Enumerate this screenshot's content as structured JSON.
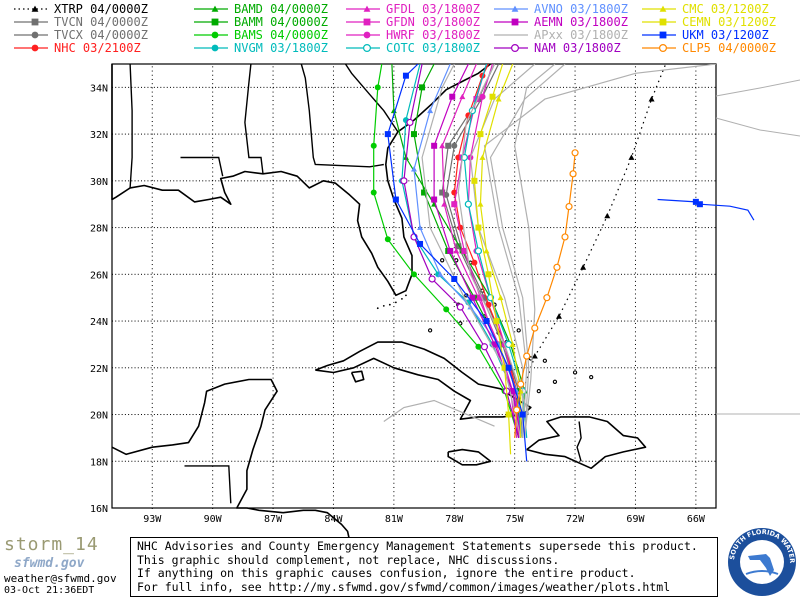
{
  "legend": [
    {
      "label": "XTRP 04/0000Z",
      "color": "#000000",
      "marker": "triangle",
      "dash": true
    },
    {
      "label": "TVCN 04/0000Z",
      "color": "#707070",
      "marker": "square"
    },
    {
      "label": "TVCX 04/0000Z",
      "color": "#707070",
      "marker": "circle"
    },
    {
      "label": "NHC  03/2100Z",
      "color": "#ff2020",
      "marker": "circle"
    },
    {
      "label": "BAMD 04/0000Z",
      "color": "#00aa00",
      "marker": "triangle"
    },
    {
      "label": "BAMM 04/0000Z",
      "color": "#00aa00",
      "marker": "square"
    },
    {
      "label": "BAMS 04/0000Z",
      "color": "#00cc00",
      "marker": "circle"
    },
    {
      "label": "NVGM 03/1800Z",
      "color": "#00bbbb",
      "marker": "circle"
    },
    {
      "label": "GFDL 03/1800Z",
      "color": "#e020c0",
      "marker": "triangle"
    },
    {
      "label": "GFDN 03/1800Z",
      "color": "#e020c0",
      "marker": "square"
    },
    {
      "label": "HWRF 03/1800Z",
      "color": "#e020c0",
      "marker": "circle"
    },
    {
      "label": "COTC 03/1800Z",
      "color": "#00bbbb",
      "marker": "hollow-circle"
    },
    {
      "label": "AVNO 03/1800Z",
      "color": "#6090ff",
      "marker": "triangle"
    },
    {
      "label": "AEMN 03/1800Z",
      "color": "#c000c0",
      "marker": "square"
    },
    {
      "label": "APxx 03/1800Z",
      "color": "#b0b0b0",
      "marker": "none"
    },
    {
      "label": "NAM  03/1800Z",
      "color": "#a000c0",
      "marker": "hollow-circle"
    },
    {
      "label": "CMC  03/1200Z",
      "color": "#e0e000",
      "marker": "triangle"
    },
    {
      "label": "CEMN 03/1200Z",
      "color": "#e0e000",
      "marker": "square"
    },
    {
      "label": "UKM  03/1200Z",
      "color": "#0030ff",
      "marker": "square"
    },
    {
      "label": "CLP5 04/0000Z",
      "color": "#ff8800",
      "marker": "hollow-circle"
    }
  ],
  "map": {
    "lon_labels": [
      "93W",
      "90W",
      "87W",
      "84W",
      "81W",
      "78W",
      "75W",
      "72W",
      "69W",
      "66W"
    ],
    "lat_labels": [
      "34N",
      "32N",
      "30N",
      "28N",
      "26N",
      "24N",
      "22N",
      "20N",
      "18N",
      "16N"
    ],
    "lon_range": [
      -95,
      -65
    ],
    "lat_range": [
      16,
      35
    ],
    "tracks": [
      {
        "name": "XTRP",
        "color": "#000000",
        "dash": true,
        "marker": "triangle",
        "points": [
          [
            -75,
            20
          ],
          [
            -74,
            22.5
          ],
          [
            -72.8,
            24.2
          ],
          [
            -71.6,
            26.3
          ],
          [
            -70.4,
            28.5
          ],
          [
            -69.2,
            31
          ],
          [
            -68.2,
            33.5
          ],
          [
            -67.5,
            35
          ]
        ]
      },
      {
        "name": "TVCN",
        "color": "#707070",
        "marker": "square",
        "points": [
          [
            -74.7,
            19
          ],
          [
            -74.9,
            21
          ],
          [
            -75.6,
            23
          ],
          [
            -76.6,
            25
          ],
          [
            -77.8,
            27.2
          ],
          [
            -78.6,
            29.5
          ],
          [
            -78.3,
            31.5
          ],
          [
            -76.8,
            33.5
          ],
          [
            -76,
            35
          ]
        ]
      },
      {
        "name": "TVCX",
        "color": "#707070",
        "marker": "circle",
        "points": [
          [
            -74.6,
            19
          ],
          [
            -74.8,
            21
          ],
          [
            -75.5,
            23
          ],
          [
            -76.5,
            25
          ],
          [
            -77.6,
            27
          ],
          [
            -78.4,
            29.4
          ],
          [
            -78,
            31.5
          ],
          [
            -76.6,
            33.6
          ],
          [
            -75.8,
            35
          ]
        ]
      },
      {
        "name": "NHC",
        "color": "#ff2020",
        "marker": "circle",
        "points": [
          [
            -74.8,
            19
          ],
          [
            -74.9,
            21
          ],
          [
            -75.5,
            23
          ],
          [
            -76.3,
            24.7
          ],
          [
            -77,
            26.5
          ],
          [
            -77.7,
            28
          ],
          [
            -78,
            29.5
          ],
          [
            -77.8,
            31
          ],
          [
            -77.3,
            32.8
          ],
          [
            -76.6,
            34.5
          ],
          [
            -76.3,
            35
          ]
        ]
      },
      {
        "name": "BAMD",
        "color": "#00aa00",
        "marker": "triangle",
        "points": [
          [
            -74.6,
            19
          ],
          [
            -74.5,
            21
          ],
          [
            -75.2,
            23
          ],
          [
            -76.2,
            25
          ],
          [
            -77.6,
            27
          ],
          [
            -79,
            29
          ],
          [
            -80.4,
            31
          ],
          [
            -81,
            33
          ],
          [
            -81.1,
            35
          ]
        ]
      },
      {
        "name": "BAMM",
        "color": "#00aa00",
        "marker": "square",
        "points": [
          [
            -74.7,
            19
          ],
          [
            -74.9,
            21
          ],
          [
            -75.8,
            23
          ],
          [
            -77,
            25
          ],
          [
            -78.3,
            27
          ],
          [
            -79.5,
            29.5
          ],
          [
            -80,
            32
          ],
          [
            -79.6,
            34
          ],
          [
            -79,
            35
          ]
        ]
      },
      {
        "name": "BAMS",
        "color": "#00cc00",
        "marker": "circle",
        "points": [
          [
            -74.8,
            19
          ],
          [
            -75.5,
            21
          ],
          [
            -76.8,
            22.9
          ],
          [
            -78.4,
            24.5
          ],
          [
            -80,
            26
          ],
          [
            -81.3,
            27.5
          ],
          [
            -82,
            29.5
          ],
          [
            -82,
            31.5
          ],
          [
            -81.8,
            34
          ],
          [
            -81.6,
            35
          ]
        ]
      },
      {
        "name": "NVGM",
        "color": "#00bbbb",
        "marker": "circle",
        "points": [
          [
            -74.6,
            19
          ],
          [
            -75.1,
            21
          ],
          [
            -76.1,
            23
          ],
          [
            -77.3,
            24.8
          ],
          [
            -78.8,
            26
          ],
          [
            -80,
            27.6
          ],
          [
            -80.6,
            30
          ],
          [
            -80.4,
            32.6
          ],
          [
            -79.7,
            35
          ]
        ]
      },
      {
        "name": "GFDL",
        "color": "#e020c0",
        "marker": "triangle",
        "points": [
          [
            -74.8,
            19
          ],
          [
            -75.1,
            21
          ],
          [
            -75.8,
            23
          ],
          [
            -76.8,
            25
          ],
          [
            -77.9,
            27
          ],
          [
            -78.5,
            29
          ],
          [
            -78.6,
            31.5
          ],
          [
            -77.6,
            33.6
          ],
          [
            -76.9,
            35
          ]
        ]
      },
      {
        "name": "GFDN",
        "color": "#e020c0",
        "marker": "square",
        "points": [
          [
            -74.9,
            19
          ],
          [
            -75.2,
            21
          ],
          [
            -75.9,
            23
          ],
          [
            -76.7,
            25
          ],
          [
            -77.5,
            27
          ],
          [
            -78,
            29
          ],
          [
            -77.6,
            31
          ],
          [
            -76.9,
            33.5
          ],
          [
            -76.4,
            35
          ]
        ]
      },
      {
        "name": "HWRF",
        "color": "#e020c0",
        "marker": "circle",
        "points": [
          [
            -74.7,
            19
          ],
          [
            -75,
            21
          ],
          [
            -75.5,
            23
          ],
          [
            -76.2,
            25
          ],
          [
            -76.9,
            27
          ],
          [
            -77.3,
            29
          ],
          [
            -77.2,
            31
          ],
          [
            -76.6,
            33.6
          ],
          [
            -76.1,
            35
          ]
        ]
      },
      {
        "name": "COTC",
        "color": "#00bbbb",
        "marker": "hollow-circle",
        "points": [
          [
            -74.4,
            19
          ],
          [
            -74.6,
            21
          ],
          [
            -75.3,
            23
          ],
          [
            -76.2,
            25
          ],
          [
            -76.8,
            27
          ],
          [
            -77.3,
            29
          ],
          [
            -77.5,
            31
          ],
          [
            -77.1,
            33
          ],
          [
            -76.4,
            35
          ]
        ]
      },
      {
        "name": "AVNO",
        "color": "#6090ff",
        "marker": "triangle",
        "points": [
          [
            -74.6,
            19
          ],
          [
            -74.9,
            21
          ],
          [
            -75.8,
            23
          ],
          [
            -77.2,
            24.6
          ],
          [
            -78.7,
            26
          ],
          [
            -79.7,
            28
          ],
          [
            -80,
            30.5
          ],
          [
            -79.2,
            33
          ],
          [
            -78.2,
            35
          ]
        ]
      },
      {
        "name": "AEMN",
        "color": "#c000c0",
        "marker": "square",
        "points": [
          [
            -74.7,
            19
          ],
          [
            -75.1,
            21
          ],
          [
            -76,
            23
          ],
          [
            -77.1,
            25
          ],
          [
            -78.2,
            27
          ],
          [
            -79,
            29.2
          ],
          [
            -79,
            31.5
          ],
          [
            -78.1,
            33.6
          ],
          [
            -77.3,
            35
          ]
        ]
      },
      {
        "name": "APxx-1",
        "color": "#b0b0b0",
        "marker": "none",
        "points": [
          [
            -74.6,
            19
          ],
          [
            -74.6,
            22
          ],
          [
            -75.5,
            25
          ],
          [
            -76.8,
            28
          ],
          [
            -77.2,
            31
          ],
          [
            -76,
            33.5
          ],
          [
            -74,
            35
          ]
        ]
      },
      {
        "name": "APxx-2",
        "color": "#b0b0b0",
        "marker": "none",
        "points": [
          [
            -74.5,
            19
          ],
          [
            -74.3,
            22
          ],
          [
            -74.6,
            25
          ],
          [
            -75.6,
            28
          ],
          [
            -76.2,
            31
          ],
          [
            -74.5,
            33.5
          ],
          [
            -72.5,
            35
          ]
        ]
      },
      {
        "name": "APxx-3",
        "color": "#b0b0b0",
        "marker": "none",
        "points": [
          [
            -74.7,
            19
          ],
          [
            -75.5,
            22
          ],
          [
            -77.5,
            25
          ],
          [
            -79.2,
            28
          ],
          [
            -79.6,
            31
          ],
          [
            -78.6,
            34
          ],
          [
            -78,
            35
          ]
        ]
      },
      {
        "name": "APxx-4",
        "color": "#b0b0b0",
        "marker": "none",
        "points": [
          [
            -74.6,
            19
          ],
          [
            -74.4,
            22
          ],
          [
            -74.8,
            25
          ],
          [
            -75.8,
            28
          ],
          [
            -76.5,
            31.5
          ],
          [
            -73.5,
            33.5
          ],
          [
            -69,
            34.6
          ],
          [
            -65,
            35
          ]
        ]
      },
      {
        "name": "APxx-5",
        "color": "#b0b0b0",
        "marker": "none",
        "points": [
          [
            -76,
            19.5
          ],
          [
            -79,
            20.6
          ],
          [
            -80.5,
            20.3
          ],
          [
            -81.5,
            19.7
          ]
        ]
      },
      {
        "name": "APxx-6",
        "color": "#b0b0b0",
        "marker": "none",
        "points": [
          [
            -74.5,
            19
          ],
          [
            -74.2,
            21.5
          ],
          [
            -74,
            24.5
          ],
          [
            -74.3,
            28
          ],
          [
            -75,
            31.5
          ],
          [
            -74.4,
            34
          ],
          [
            -73,
            35
          ]
        ]
      },
      {
        "name": "APxx-7",
        "color": "#b0b0b0",
        "marker": "none",
        "points": [
          [
            -74.3,
            20
          ],
          [
            -75.5,
            23
          ],
          [
            -77.2,
            26
          ],
          [
            -77.8,
            29.5
          ],
          [
            -77.4,
            32.5
          ],
          [
            -76,
            35
          ]
        ]
      },
      {
        "name": "NAM",
        "color": "#a000c0",
        "marker": "hollow-circle",
        "points": [
          [
            -74.8,
            19
          ],
          [
            -75.4,
            21
          ],
          [
            -76.5,
            22.9
          ],
          [
            -77.7,
            24.6
          ],
          [
            -79.1,
            25.8
          ],
          [
            -80,
            27.6
          ],
          [
            -80.5,
            30
          ],
          [
            -80.2,
            32.5
          ],
          [
            -79.6,
            35
          ]
        ]
      },
      {
        "name": "CMC",
        "color": "#e0e000",
        "marker": "triangle",
        "points": [
          [
            -74.7,
            19
          ],
          [
            -74.7,
            21
          ],
          [
            -75.1,
            23
          ],
          [
            -75.7,
            25
          ],
          [
            -76.4,
            27
          ],
          [
            -76.7,
            29
          ],
          [
            -76.6,
            31
          ],
          [
            -75.8,
            33.5
          ],
          [
            -75.1,
            35
          ]
        ]
      },
      {
        "name": "CEMN",
        "color": "#e0e000",
        "marker": "square",
        "points": [
          [
            -75.2,
            18.3
          ],
          [
            -75.3,
            20
          ],
          [
            -75.5,
            22
          ],
          [
            -75.9,
            24
          ],
          [
            -76.3,
            26
          ],
          [
            -76.8,
            28
          ],
          [
            -77,
            30
          ],
          [
            -76.7,
            32
          ],
          [
            -76.1,
            33.6
          ],
          [
            -75.6,
            35
          ]
        ]
      },
      {
        "name": "UKM",
        "color": "#0030ff",
        "marker": "square",
        "points": [
          [
            -74.4,
            18
          ],
          [
            -74.6,
            20
          ],
          [
            -75.3,
            22
          ],
          [
            -76.4,
            24
          ],
          [
            -78,
            25.8
          ],
          [
            -79.7,
            27.3
          ],
          [
            -80.9,
            29.2
          ],
          [
            -81.3,
            32
          ],
          [
            -80.4,
            34.5
          ],
          [
            -79.8,
            35
          ]
        ]
      },
      {
        "name": "CLP5",
        "color": "#ff8800",
        "marker": "hollow-circle",
        "points": [
          [
            -75,
            19
          ],
          [
            -74.9,
            20.2
          ],
          [
            -74.7,
            21.3
          ],
          [
            -74.4,
            22.5
          ],
          [
            -74,
            23.7
          ],
          [
            -73.4,
            25
          ],
          [
            -72.9,
            26.3
          ],
          [
            -72.5,
            27.6
          ],
          [
            -72.3,
            28.9
          ],
          [
            -72.1,
            30.3
          ],
          [
            -72,
            31.2
          ]
        ]
      },
      {
        "name": "Storm-east",
        "color": "#0030ff",
        "marker": "square",
        "points": [
          [
            -67.9,
            29.2
          ],
          [
            -66,
            29.1
          ],
          [
            -65.8,
            29
          ]
        ]
      }
    ]
  },
  "footer": {
    "storm_name": "storm_14",
    "logo_text": "sfwmd.gov",
    "email": "weather@sfwmd.gov",
    "timestamp": "03-Oct 21:36EDT",
    "disclaimer_lines": [
      "NHC Advisories and County Emergency Management Statements supersede this product.",
      "This graphic should complement, not replace, NHC discussions.",
      "If anything on this graphic causes confusion, ignore the entire product.",
      "For full info, see  http://my.sfwmd.gov/sfwmd/common/images/weather/plots.html"
    ],
    "seal_text": "SOUTH FLORIDA WATER MANAGEMENT DISTRICT"
  }
}
